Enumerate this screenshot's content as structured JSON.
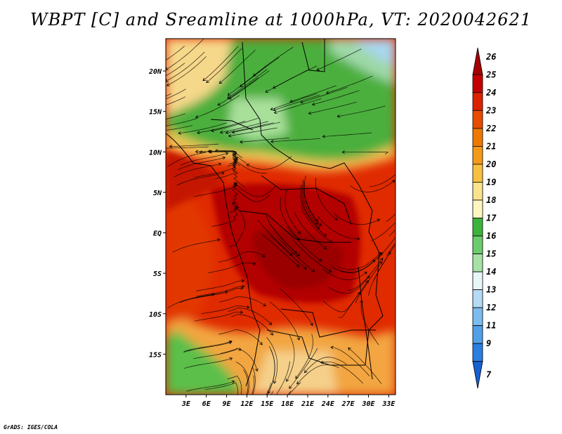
{
  "title": "WBPT [C] and Sreamline at 1000hPa, VT: 2020042621",
  "credit": "GrADS: IGES/COLA",
  "map": {
    "lat_ticks": [
      "20N",
      "15N",
      "10N",
      "5N",
      "EQ",
      "5S",
      "10S",
      "15S"
    ],
    "lat_values": [
      20,
      15,
      10,
      5,
      0,
      -5,
      -10,
      -15
    ],
    "lon_ticks": [
      "3E",
      "6E",
      "9E",
      "12E",
      "15E",
      "18E",
      "21E",
      "24E",
      "27E",
      "30E",
      "33E"
    ],
    "lon_values": [
      3,
      6,
      9,
      12,
      15,
      18,
      21,
      24,
      27,
      30,
      33
    ],
    "lon_range": [
      0,
      34
    ],
    "lat_range": [
      -20,
      24
    ]
  },
  "colorbar": {
    "labels": [
      "26",
      "25",
      "24",
      "23",
      "22",
      "21",
      "20",
      "19",
      "18",
      "17",
      "16",
      "15",
      "14",
      "13",
      "12",
      "11",
      "9",
      "7"
    ],
    "colors": [
      "#a50000",
      "#c40000",
      "#dc2200",
      "#e84c00",
      "#f07800",
      "#f59a18",
      "#f8c040",
      "#fbe28c",
      "#fdf6bf",
      "#3cb43c",
      "#6ccc6c",
      "#a6e2a6",
      "#e8f6f8",
      "#b4daf4",
      "#7cbcee",
      "#50a0e8",
      "#2a7fe0",
      "#1660d4"
    ]
  }
}
